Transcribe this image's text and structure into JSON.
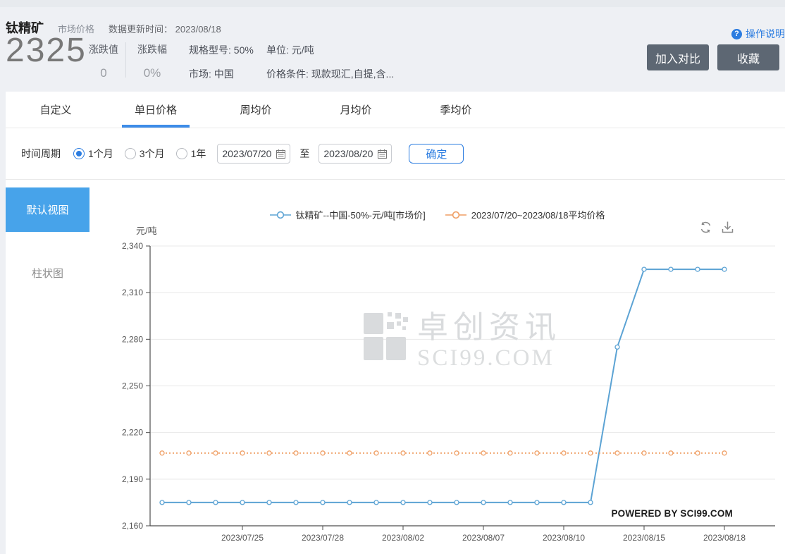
{
  "header": {
    "title": "钛精矿",
    "subtitle": "市场价格",
    "update_time_label": "数据更新时间：",
    "update_time": "2023/08/18",
    "price": "2325",
    "change_label": "涨跌值",
    "change_value": "0",
    "change_pct_label": "涨跌幅",
    "change_pct_value": "0%",
    "spec": "规格型号: 50%",
    "market": "市场: 中国",
    "unit": "单位: 元/吨",
    "condition": "价格条件: 现款现汇,自提,含...",
    "help_icon": "?",
    "help_label": "操作说明",
    "compare_button": "加入对比",
    "favorite_button": "收藏"
  },
  "tabs": [
    {
      "label": "自定义",
      "active": false
    },
    {
      "label": "单日价格",
      "active": true
    },
    {
      "label": "周均价",
      "active": false
    },
    {
      "label": "月均价",
      "active": false
    },
    {
      "label": "季均价",
      "active": false
    }
  ],
  "filter": {
    "period_label": "时间周期",
    "radios": [
      {
        "label": "1个月",
        "selected": true
      },
      {
        "label": "3个月",
        "selected": false
      },
      {
        "label": "1年",
        "selected": false
      }
    ],
    "start_date": "2023/07/20",
    "to_label": "至",
    "end_date": "2023/08/20",
    "confirm_button": "确定"
  },
  "sidebar": {
    "items": [
      {
        "label": "默认视图",
        "active": true
      },
      {
        "label": "柱状图",
        "active": false
      }
    ]
  },
  "chart": {
    "legend": [
      {
        "label": "钛精矿--中国-50%-元/吨[市场价]",
        "color": "#5ca3d4"
      },
      {
        "label": "2023/07/20~2023/08/18平均价格",
        "color": "#ef9e63"
      }
    ],
    "y_unit": "元/吨",
    "watermark_cn": "卓创资讯",
    "watermark_en": "SCI99.COM",
    "powered_by": "POWERED BY SCI99.COM"
  },
  "chart_data": {
    "type": "line",
    "title": "钛精矿 单日价格",
    "ylabel": "元/吨",
    "ylim": [
      2160,
      2340
    ],
    "y_ticks": [
      2160,
      2190,
      2220,
      2250,
      2280,
      2310,
      2340
    ],
    "grid": true,
    "legend_position": "top-center",
    "x": [
      "2023/07/20",
      "2023/07/21",
      "2023/07/24",
      "2023/07/25",
      "2023/07/26",
      "2023/07/27",
      "2023/07/28",
      "2023/07/31",
      "2023/08/01",
      "2023/08/02",
      "2023/08/03",
      "2023/08/04",
      "2023/08/07",
      "2023/08/08",
      "2023/08/09",
      "2023/08/10",
      "2023/08/11",
      "2023/08/14",
      "2023/08/15",
      "2023/08/16",
      "2023/08/17",
      "2023/08/18"
    ],
    "x_tick_labels": [
      "2023/07/25",
      "2023/07/28",
      "2023/08/02",
      "2023/08/07",
      "2023/08/10",
      "2023/08/15",
      "2023/08/18"
    ],
    "x_tick_indices": [
      3,
      6,
      9,
      12,
      15,
      18,
      21
    ],
    "series": [
      {
        "name": "钛精矿--中国-50%-元/吨[市场价]",
        "color": "#5ca3d4",
        "style": "solid",
        "values": [
          2175,
          2175,
          2175,
          2175,
          2175,
          2175,
          2175,
          2175,
          2175,
          2175,
          2175,
          2175,
          2175,
          2175,
          2175,
          2175,
          2175,
          2275,
          2325,
          2325,
          2325,
          2325
        ]
      },
      {
        "name": "2023/07/20~2023/08/18平均价格",
        "color": "#ef9e63",
        "style": "dotted",
        "constant": 2206.8
      }
    ]
  }
}
